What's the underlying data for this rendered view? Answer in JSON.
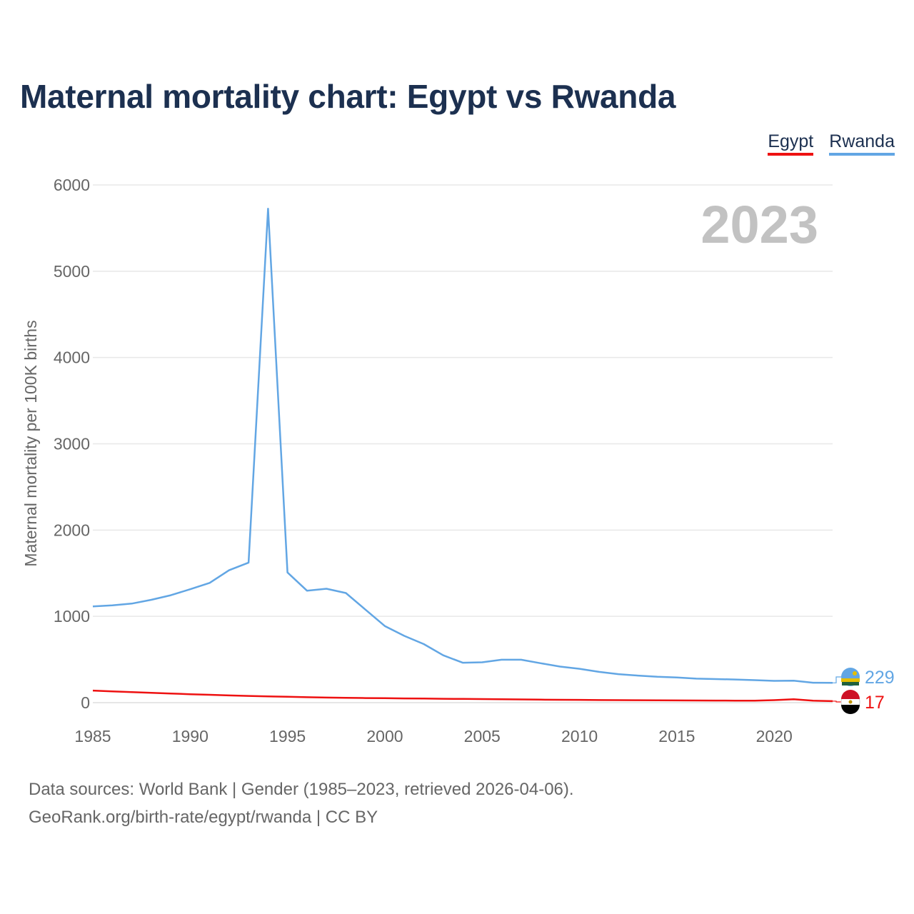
{
  "title": "Maternal mortality chart: Egypt vs Rwanda",
  "legend": [
    {
      "label": "Egypt",
      "color": "#ee1111"
    },
    {
      "label": "Rwanda",
      "color": "#62a6e4"
    }
  ],
  "footer": {
    "line1": "Data sources: World Bank | Gender (1985–2023, retrieved 2026-04-06).",
    "line2": "GeoRank.org/birth-rate/egypt/rwanda | CC BY"
  },
  "chart_data": {
    "type": "line",
    "title": "Maternal mortality chart: Egypt vs Rwanda",
    "year_label": "2023",
    "xlabel": "",
    "ylabel": "Maternal mortality per 100K births",
    "xlim": [
      1985,
      2023
    ],
    "ylim": [
      0,
      6000
    ],
    "xticks": [
      1985,
      1990,
      1995,
      2000,
      2005,
      2010,
      2015,
      2020
    ],
    "yticks": [
      0,
      1000,
      2000,
      3000,
      4000,
      5000,
      6000
    ],
    "grid": true,
    "x": [
      1985,
      1986,
      1987,
      1988,
      1989,
      1990,
      1991,
      1992,
      1993,
      1994,
      1995,
      1996,
      1997,
      1998,
      1999,
      2000,
      2001,
      2002,
      2003,
      2004,
      2005,
      2006,
      2007,
      2008,
      2009,
      2010,
      2011,
      2012,
      2013,
      2014,
      2015,
      2016,
      2017,
      2018,
      2019,
      2020,
      2021,
      2022,
      2023
    ],
    "series": [
      {
        "name": "Rwanda",
        "color": "#62a6e4",
        "end_label": "229",
        "values": [
          1115,
          1127,
          1148,
          1192,
          1245,
          1314,
          1388,
          1534,
          1623,
          5725,
          1509,
          1298,
          1320,
          1270,
          1078,
          888,
          774,
          679,
          549,
          463,
          468,
          497,
          497,
          457,
          418,
          392,
          357,
          330,
          314,
          300,
          291,
          278,
          273,
          268,
          261,
          252,
          254,
          231,
          229
        ]
      },
      {
        "name": "Egypt",
        "color": "#ee1111",
        "end_label": "17",
        "values": [
          140,
          131,
          122,
          114,
          106,
          98,
          91,
          84,
          78,
          73,
          68,
          63,
          59,
          56,
          53,
          51,
          49,
          47,
          45,
          43,
          41,
          39,
          37,
          35,
          33,
          32,
          30,
          29,
          28,
          27,
          26,
          25,
          24,
          23,
          22,
          29,
          40,
          22,
          17
        ]
      }
    ]
  }
}
